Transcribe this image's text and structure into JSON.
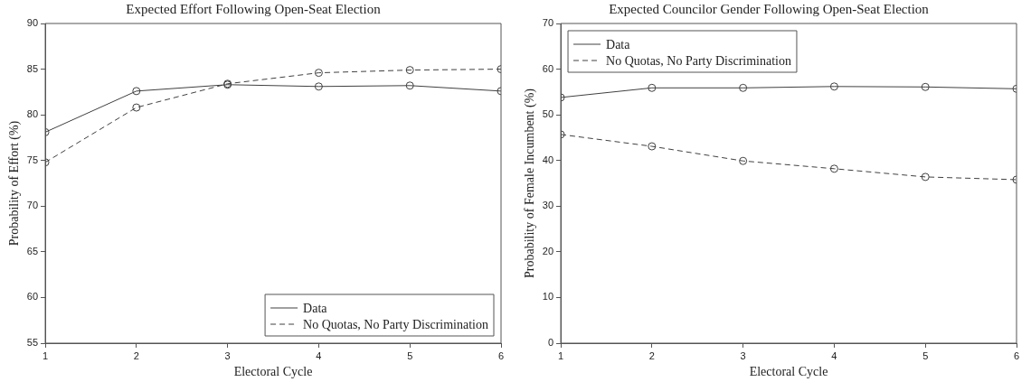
{
  "chart_data": [
    {
      "type": "line",
      "title": "Expected Effort Following Open-Seat Election",
      "xlabel": "Electoral Cycle",
      "ylabel": "Probability of Effort (%)",
      "x": [
        1,
        2,
        3,
        4,
        5,
        6
      ],
      "xlim": [
        1,
        6
      ],
      "xticks": [
        1,
        2,
        3,
        4,
        5,
        6
      ],
      "ylim": [
        55,
        90
      ],
      "yticks": [
        55,
        60,
        65,
        70,
        75,
        80,
        85,
        90
      ],
      "grid": false,
      "legend": "bottom right",
      "marker": "circle",
      "series": [
        {
          "name": "Data",
          "color": "#404040",
          "line_style": "solid",
          "values": [
            78.1,
            82.6,
            83.3,
            83.1,
            83.2,
            82.6
          ]
        },
        {
          "name": "No Quotas, No Party Discrimination",
          "color": "#404040",
          "line_style": "dashed",
          "values": [
            74.8,
            80.8,
            83.4,
            84.6,
            84.9,
            85.0
          ]
        }
      ]
    },
    {
      "type": "line",
      "title": "Expected Councilor Gender Following Open-Seat Election",
      "xlabel": "Electoral Cycle",
      "ylabel": "Probability of Female Incumbent (%)",
      "x": [
        1,
        2,
        3,
        4,
        5,
        6
      ],
      "xlim": [
        1,
        6
      ],
      "xticks": [
        1,
        2,
        3,
        4,
        5,
        6
      ],
      "ylim": [
        0,
        70
      ],
      "yticks": [
        0,
        10,
        20,
        30,
        40,
        50,
        60,
        70
      ],
      "grid": false,
      "legend": "top left",
      "marker": "circle",
      "series": [
        {
          "name": "Data",
          "color": "#404040",
          "line_style": "solid",
          "values": [
            53.8,
            55.9,
            55.9,
            56.2,
            56.1,
            55.7
          ]
        },
        {
          "name": "No Quotas, No Party Discrimination",
          "color": "#404040",
          "line_style": "dashed",
          "values": [
            45.7,
            43.1,
            39.9,
            38.2,
            36.4,
            35.8
          ]
        }
      ]
    }
  ]
}
